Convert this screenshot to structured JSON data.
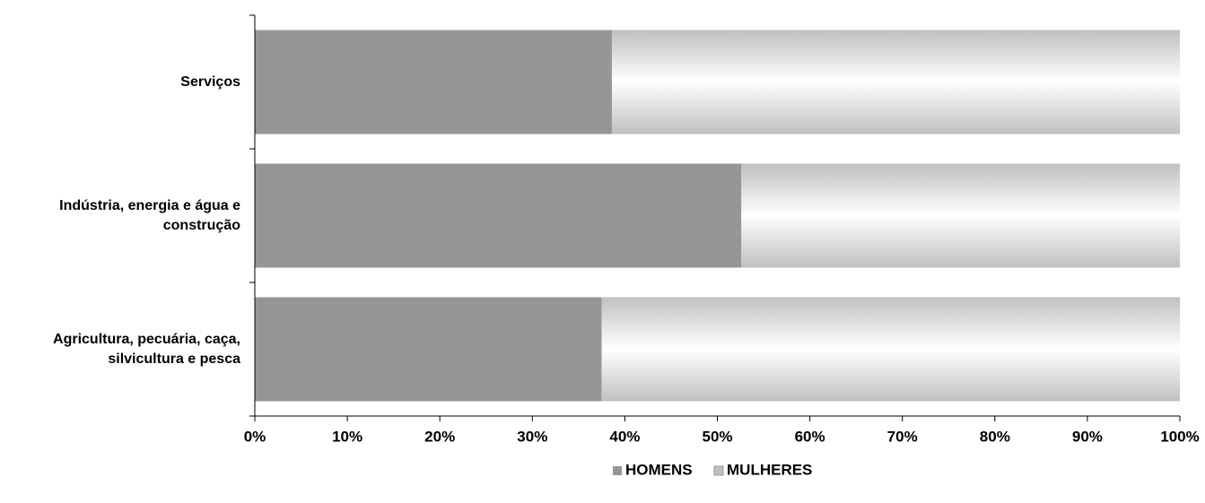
{
  "chart_data": {
    "type": "stacked-bar-100",
    "categories": [
      "Serviços",
      "Indústria, energia e água e construção",
      "Agricultura, pecuária, caça, silvicultura e pesca"
    ],
    "series": [
      {
        "name": "HOMENS",
        "color": "#969696",
        "values": [
          38.6,
          52.6,
          37.5
        ]
      },
      {
        "name": "MULHERES",
        "color": "#c0c0c0",
        "values": [
          61.4,
          47.4,
          62.5
        ]
      }
    ],
    "xlim": [
      0,
      100
    ],
    "xticks": [
      {
        "value": 0,
        "label": "0%"
      },
      {
        "value": 10,
        "label": "10%"
      },
      {
        "value": 20,
        "label": "20%"
      },
      {
        "value": 30,
        "label": "30%"
      },
      {
        "value": 40,
        "label": "40%"
      },
      {
        "value": 50,
        "label": "50%"
      },
      {
        "value": 60,
        "label": "60%"
      },
      {
        "value": 70,
        "label": "70%"
      },
      {
        "value": 80,
        "label": "80%"
      },
      {
        "value": 90,
        "label": "90%"
      },
      {
        "value": 100,
        "label": "100%"
      }
    ],
    "legend": "bottom"
  }
}
